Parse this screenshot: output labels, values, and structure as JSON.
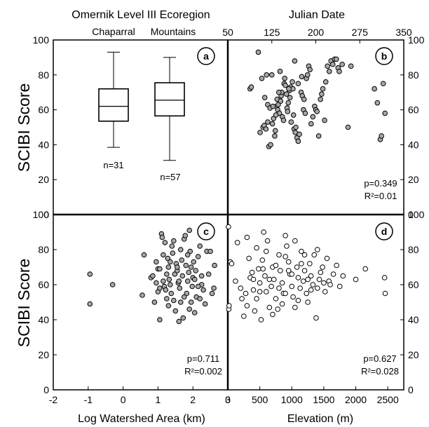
{
  "labels": {
    "top_left_title": "Omernik Level III Ecoregion",
    "top_right_title": "Julian Date",
    "y_title_top": "SCIBI Score",
    "y_title_bottom": "SCIBI Score",
    "x_title_bottom_left": "Log Watershed Area (km)",
    "x_title_bottom_right": "Elevation (m)"
  },
  "chart_data": [
    {
      "panel": "a",
      "type": "box",
      "xlabel": "Omernik Level III Ecoregion",
      "ylabel": "SCIBI Score",
      "ylim": [
        0,
        100
      ],
      "yticks": [
        "0",
        "20",
        "40",
        "60",
        "80",
        "100"
      ],
      "categories": [
        "Chaparral",
        "Mountains"
      ],
      "n_labels": [
        "n=31",
        "n=57"
      ],
      "boxes": [
        {
          "name": "Chaparral",
          "min": 38.5,
          "q1": 53.5,
          "median": 62,
          "q3": 72,
          "max": 93
        },
        {
          "name": "Mountains",
          "min": 31,
          "q1": 56.5,
          "median": 65.5,
          "q3": 75.5,
          "max": 90
        }
      ]
    },
    {
      "panel": "b",
      "type": "scatter",
      "xlabel": "Julian Date",
      "ylabel": "SCIBI Score",
      "xlim": [
        50,
        350
      ],
      "ylim": [
        0,
        100
      ],
      "xticks": [
        "50",
        "125",
        "200",
        "275",
        "350"
      ],
      "yticks": [
        "0",
        "20",
        "40",
        "60",
        "80",
        "100"
      ],
      "stats": [
        "p=0.349",
        "R²=0.01"
      ],
      "marker_fill": "#a8a8a8",
      "points": [
        [
          88,
          72
        ],
        [
          90,
          73
        ],
        [
          105,
          47
        ],
        [
          110,
          50
        ],
        [
          112,
          51
        ],
        [
          115,
          49
        ],
        [
          118,
          53
        ],
        [
          120,
          39
        ],
        [
          123,
          40
        ],
        [
          126,
          52
        ],
        [
          128,
          55
        ],
        [
          130,
          45
        ],
        [
          131,
          48
        ],
        [
          133,
          62
        ],
        [
          134,
          66
        ],
        [
          135,
          60
        ],
        [
          136,
          63
        ],
        [
          138,
          58
        ],
        [
          140,
          65
        ],
        [
          141,
          68
        ],
        [
          142,
          70
        ],
        [
          143,
          56
        ],
        [
          145,
          54
        ],
        [
          146,
          75
        ],
        [
          148,
          74
        ],
        [
          150,
          69
        ],
        [
          151,
          61
        ],
        [
          152,
          59
        ],
        [
          153,
          64
        ],
        [
          155,
          71
        ],
        [
          156,
          67
        ],
        [
          157,
          73
        ],
        [
          158,
          53
        ],
        [
          160,
          76
        ],
        [
          161,
          72
        ],
        [
          162,
          57
        ],
        [
          163,
          49
        ],
        [
          165,
          47
        ],
        [
          166,
          50
        ],
        [
          168,
          44
        ],
        [
          170,
          42
        ],
        [
          172,
          46
        ],
        [
          175,
          70
        ],
        [
          177,
          68
        ],
        [
          179,
          60
        ],
        [
          180,
          66
        ],
        [
          182,
          58
        ],
        [
          184,
          78
        ],
        [
          186,
          80
        ],
        [
          188,
          85
        ],
        [
          190,
          83
        ],
        [
          192,
          52
        ],
        [
          195,
          56
        ],
        [
          198,
          62
        ],
        [
          200,
          60
        ],
        [
          202,
          59
        ],
        [
          205,
          45
        ],
        [
          208,
          66
        ],
        [
          210,
          69
        ],
        [
          212,
          72
        ],
        [
          215,
          54
        ],
        [
          217,
          76
        ],
        [
          220,
          85
        ],
        [
          223,
          82
        ],
        [
          226,
          88
        ],
        [
          229,
          86
        ],
        [
          232,
          89
        ],
        [
          235,
          89
        ],
        [
          238,
          84
        ],
        [
          240,
          82
        ],
        [
          245,
          86
        ],
        [
          255,
          50
        ],
        [
          118,
          63
        ],
        [
          122,
          61
        ],
        [
          127,
          62
        ],
        [
          132,
          57
        ],
        [
          137,
          70
        ],
        [
          102,
          93
        ],
        [
          108,
          78
        ],
        [
          113,
          67
        ],
        [
          116,
          80
        ],
        [
          125,
          80
        ],
        [
          139,
          82
        ],
        [
          147,
          78
        ],
        [
          154,
          72
        ],
        [
          164,
          88
        ],
        [
          170,
          75
        ],
        [
          176,
          79
        ],
        [
          260,
          85
        ],
        [
          300,
          72
        ],
        [
          305,
          64
        ],
        [
          310,
          43
        ],
        [
          312,
          45
        ],
        [
          315,
          75
        ],
        [
          318,
          58
        ]
      ]
    },
    {
      "panel": "c",
      "type": "scatter",
      "xlabel": "Log Watershed Area (km)",
      "ylabel": "SCIBI Score",
      "xlim": [
        -2,
        3
      ],
      "ylim": [
        0,
        100
      ],
      "xticks": [
        "-2",
        "-1",
        "0",
        "1",
        "2",
        "3"
      ],
      "yticks": [
        "0",
        "20",
        "40",
        "60",
        "80",
        "100"
      ],
      "stats": [
        "p=0.711",
        "R²=0.002"
      ],
      "marker_fill": "#a8a8a8",
      "points": [
        [
          -0.95,
          66
        ],
        [
          -0.95,
          49
        ],
        [
          -0.3,
          60
        ],
        [
          0.55,
          54
        ],
        [
          0.6,
          77
        ],
        [
          0.8,
          64
        ],
        [
          0.85,
          65
        ],
        [
          0.9,
          50
        ],
        [
          0.95,
          73
        ],
        [
          1.0,
          69
        ],
        [
          1.05,
          69
        ],
        [
          1.05,
          40
        ],
        [
          1.1,
          89
        ],
        [
          1.12,
          87
        ],
        [
          1.15,
          62
        ],
        [
          1.18,
          59
        ],
        [
          1.2,
          84
        ],
        [
          1.22,
          57
        ],
        [
          1.25,
          52
        ],
        [
          1.28,
          75
        ],
        [
          1.3,
          70
        ],
        [
          1.32,
          63
        ],
        [
          1.35,
          60
        ],
        [
          1.38,
          55
        ],
        [
          1.4,
          82
        ],
        [
          1.42,
          78
        ],
        [
          1.45,
          51
        ],
        [
          1.48,
          66
        ],
        [
          1.5,
          45
        ],
        [
          1.52,
          72
        ],
        [
          1.55,
          68
        ],
        [
          1.58,
          61
        ],
        [
          1.6,
          39
        ],
        [
          1.62,
          58
        ],
        [
          1.65,
          80
        ],
        [
          1.68,
          74
        ],
        [
          1.7,
          65
        ],
        [
          1.72,
          41
        ],
        [
          1.75,
          86
        ],
        [
          1.78,
          88
        ],
        [
          1.8,
          71
        ],
        [
          1.82,
          55
        ],
        [
          1.85,
          62
        ],
        [
          1.88,
          67
        ],
        [
          1.9,
          91
        ],
        [
          1.92,
          79
        ],
        [
          1.95,
          50
        ],
        [
          1.98,
          59
        ],
        [
          2.0,
          64
        ],
        [
          2.02,
          73
        ],
        [
          2.05,
          44
        ],
        [
          2.08,
          68
        ],
        [
          2.1,
          53
        ],
        [
          2.15,
          76
        ],
        [
          2.2,
          82
        ],
        [
          2.25,
          60
        ],
        [
          2.3,
          57
        ],
        [
          2.35,
          49
        ],
        [
          2.4,
          79
        ],
        [
          2.45,
          66
        ],
        [
          2.5,
          79
        ],
        [
          2.55,
          55
        ],
        [
          2.6,
          58
        ],
        [
          2.62,
          71
        ],
        [
          1.0,
          56
        ],
        [
          1.15,
          77
        ],
        [
          1.3,
          48
        ],
        [
          1.45,
          85
        ],
        [
          1.6,
          62
        ],
        [
          1.75,
          53
        ],
        [
          1.9,
          46
        ],
        [
          2.05,
          63
        ],
        [
          2.2,
          52
        ],
        [
          1.25,
          66
        ],
        [
          1.55,
          70
        ],
        [
          1.85,
          77
        ],
        [
          2.15,
          59
        ],
        [
          0.95,
          61
        ],
        [
          1.05,
          58
        ],
        [
          1.35,
          73
        ],
        [
          1.65,
          50
        ],
        [
          1.95,
          70
        ],
        [
          2.25,
          65
        ]
      ]
    },
    {
      "panel": "d",
      "type": "scatter",
      "xlabel": "Elevation (m)",
      "ylabel": "SCIBI Score",
      "xlim": [
        0,
        2750
      ],
      "ylim": [
        0,
        100
      ],
      "xticks": [
        "0",
        "500",
        "1000",
        "1500",
        "2000",
        "2500"
      ],
      "yticks": [
        "0",
        "20",
        "40",
        "60",
        "80",
        "100"
      ],
      "stats": [
        "p=0.627",
        "R²=0.028"
      ],
      "marker_fill": "#ffffff",
      "points": [
        [
          10,
          93
        ],
        [
          15,
          46
        ],
        [
          20,
          48
        ],
        [
          40,
          73
        ],
        [
          60,
          72
        ],
        [
          120,
          62
        ],
        [
          150,
          84
        ],
        [
          200,
          58
        ],
        [
          220,
          52
        ],
        [
          250,
          42
        ],
        [
          280,
          55
        ],
        [
          300,
          48
        ],
        [
          330,
          75
        ],
        [
          350,
          64
        ],
        [
          380,
          67
        ],
        [
          400,
          57
        ],
        [
          420,
          45
        ],
        [
          450,
          52
        ],
        [
          480,
          69
        ],
        [
          500,
          61
        ],
        [
          520,
          40
        ],
        [
          540,
          74
        ],
        [
          560,
          90
        ],
        [
          580,
          65
        ],
        [
          600,
          56
        ],
        [
          620,
          85
        ],
        [
          650,
          47
        ],
        [
          680,
          59
        ],
        [
          700,
          70
        ],
        [
          720,
          63
        ],
        [
          750,
          52
        ],
        [
          780,
          46
        ],
        [
          800,
          77
        ],
        [
          820,
          68
        ],
        [
          850,
          61
        ],
        [
          870,
          55
        ],
        [
          900,
          88
        ],
        [
          920,
          82
        ],
        [
          950,
          73
        ],
        [
          970,
          66
        ],
        [
          1000,
          59
        ],
        [
          1020,
          53
        ],
        [
          1050,
          47
        ],
        [
          1080,
          70
        ],
        [
          1100,
          64
        ],
        [
          1130,
          58
        ],
        [
          1150,
          79
        ],
        [
          1180,
          62
        ],
        [
          1200,
          68
        ],
        [
          1230,
          55
        ],
        [
          1250,
          50
        ],
        [
          1280,
          72
        ],
        [
          1300,
          65
        ],
        [
          1330,
          60
        ],
        [
          1350,
          77
        ],
        [
          1380,
          41
        ],
        [
          1400,
          58
        ],
        [
          1430,
          63
        ],
        [
          1450,
          67
        ],
        [
          1480,
          70
        ],
        [
          1500,
          61
        ],
        [
          1520,
          56
        ],
        [
          1550,
          75
        ],
        [
          1580,
          62
        ],
        [
          1600,
          60
        ],
        [
          1650,
          66
        ],
        [
          1700,
          71
        ],
        [
          1750,
          59
        ],
        [
          1800,
          65
        ],
        [
          2000,
          63
        ],
        [
          2150,
          69
        ],
        [
          2450,
          64
        ],
        [
          2460,
          55
        ],
        [
          300,
          87
        ],
        [
          450,
          81
        ],
        [
          600,
          79
        ],
        [
          750,
          71
        ],
        [
          900,
          76
        ],
        [
          1050,
          85
        ],
        [
          1200,
          77
        ],
        [
          1400,
          80
        ],
        [
          500,
          56
        ],
        [
          650,
          63
        ],
        [
          800,
          58
        ],
        [
          950,
          68
        ],
        [
          1100,
          51
        ],
        [
          1250,
          63
        ],
        [
          700,
          43
        ],
        [
          850,
          49
        ],
        [
          1000,
          66
        ],
        [
          1150,
          72
        ],
        [
          1300,
          57
        ],
        [
          400,
          63
        ],
        [
          550,
          69
        ],
        [
          900,
          55
        ]
      ]
    }
  ]
}
